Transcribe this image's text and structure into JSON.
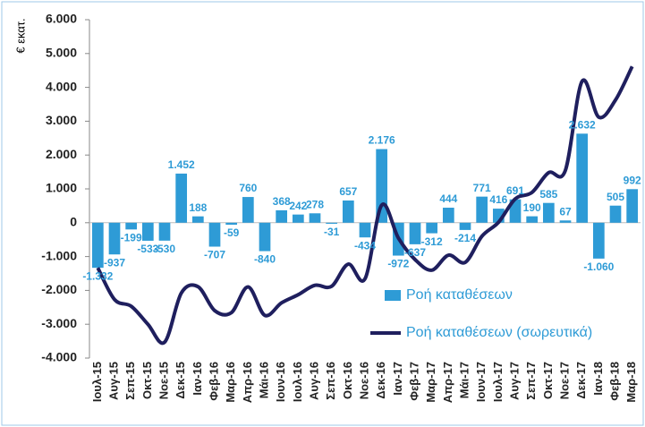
{
  "chart_data": {
    "type": "bar",
    "y_label": "€ εκατ.",
    "categories": [
      "Ιουλ-15",
      "Αυγ-15",
      "Σεπ-15",
      "Οκτ-15",
      "Νοε-15",
      "Δεκ-15",
      "Ιαν-16",
      "Φεβ-16",
      "Μαρ-16",
      "Απρ-16",
      "Μάι-16",
      "Ιουν-16",
      "Ιουλ-16",
      "Αυγ-16",
      "Σεπ-16",
      "Οκτ-16",
      "Νοε-16",
      "Δεκ-16",
      "Ιαν-17",
      "Φεβ-17",
      "Μαρ-17",
      "Απρ-17",
      "Μάι-17",
      "Ιουν-17",
      "Ιουλ-17",
      "Αυγ-17",
      "Σεπ-17",
      "Οκτ-17",
      "Νοε-17",
      "Δεκ-17",
      "Ιαν-18",
      "Φεβ-18",
      "Μαρ-18"
    ],
    "series": [
      {
        "name": "Ροή καταθέσεων",
        "type": "bar",
        "color": "#2e9bd6",
        "values": [
          -1332,
          -937,
          -199,
          -533,
          -530,
          1452,
          188,
          -707,
          -59,
          760,
          -840,
          368,
          242,
          278,
          -31,
          657,
          -434,
          2176,
          -972,
          -637,
          -312,
          444,
          -214,
          771,
          416,
          691,
          190,
          585,
          67,
          2632,
          -1060,
          505,
          992
        ],
        "value_labels": [
          "-1.332",
          "-937",
          "-199",
          "-533",
          "-530",
          "1.452",
          "188",
          "-707",
          "-59",
          "760",
          "-840",
          "368",
          "242",
          "278",
          "-31",
          "657",
          "-434",
          "2.176",
          "-972",
          "-637",
          "-312",
          "444",
          "-214",
          "771",
          "416",
          "691",
          "190",
          "585",
          "67",
          "2.632",
          "-1.060",
          "505",
          "992"
        ]
      },
      {
        "name": "Ροή καταθέσεων (σωρευτικά)",
        "type": "line",
        "color": "#1f1f5e",
        "values": [
          -1332,
          -2269,
          -2468,
          -3001,
          -3531,
          -2079,
          -1891,
          -2598,
          -2657,
          -1897,
          -2737,
          -2369,
          -2127,
          -1849,
          -1880,
          -1223,
          -1657,
          519,
          -453,
          -1090,
          -1402,
          -958,
          -1172,
          -401,
          15,
          706,
          896,
          1481,
          1548,
          4180,
          3120,
          3625,
          4617
        ]
      }
    ],
    "ylim": [
      -4000,
      6000
    ],
    "yticks": [
      {
        "value": -4000,
        "label": "-4.000"
      },
      {
        "value": -3000,
        "label": "-3.000"
      },
      {
        "value": -2000,
        "label": "-2.000"
      },
      {
        "value": -1000,
        "label": "-1.000"
      },
      0,
      {
        "value": 1000,
        "label": "1.000"
      },
      {
        "value": 2000,
        "label": "2.000"
      },
      {
        "value": 3000,
        "label": "3.000"
      },
      {
        "value": 4000,
        "label": "4.000"
      },
      {
        "value": 5000,
        "label": "5.000"
      },
      {
        "value": 6000,
        "label": "6.000"
      }
    ],
    "legend": "lower right"
  }
}
